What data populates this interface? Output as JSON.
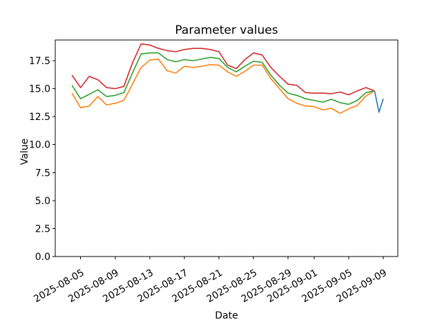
{
  "figure": {
    "title": "Parameter values",
    "x_axis_label": "Date",
    "y_axis_label": "Value"
  },
  "chart_data": {
    "type": "line",
    "title": "Parameter values",
    "xlabel": "Date",
    "ylabel": "Value",
    "grid": false,
    "legend": false,
    "ylim": [
      0,
      19.35
    ],
    "xlim_days_from_2025_08_05": [
      -2.93,
      36.68
    ],
    "y_ticks": [
      0,
      2.5,
      5,
      7.5,
      10,
      12.5,
      15,
      17.5
    ],
    "y_tick_labels": [
      "0.0",
      "2.5",
      "5.0",
      "7.5",
      "10.0",
      "12.5",
      "15.0",
      "17.5"
    ],
    "x_ticks": [
      "2025-08-05",
      "2025-08-09",
      "2025-08-13",
      "2025-08-17",
      "2025-08-21",
      "2025-08-25",
      "2025-08-29",
      "2025-09-01",
      "2025-09-05",
      "2025-09-09"
    ],
    "x_dates": [
      "2025-08-04",
      "2025-08-05",
      "2025-08-06",
      "2025-08-07",
      "2025-08-08",
      "2025-08-09",
      "2025-08-10",
      "2025-08-11",
      "2025-08-12",
      "2025-08-13",
      "2025-08-14",
      "2025-08-15",
      "2025-08-16",
      "2025-08-17",
      "2025-08-18",
      "2025-08-19",
      "2025-08-20",
      "2025-08-21",
      "2025-08-22",
      "2025-08-23",
      "2025-08-24",
      "2025-08-25",
      "2025-08-26",
      "2025-08-27",
      "2025-08-28",
      "2025-08-29",
      "2025-08-30",
      "2025-08-31",
      "2025-09-01",
      "2025-09-02",
      "2025-09-03",
      "2025-09-04",
      "2025-09-05",
      "2025-09-06",
      "2025-09-07",
      "2025-09-08"
    ],
    "series": [
      {
        "name": "red-series",
        "color": "#d62728",
        "values": [
          16.2,
          15.1,
          16.1,
          15.8,
          15.1,
          15.0,
          15.2,
          17.3,
          19.0,
          18.9,
          18.6,
          18.4,
          18.3,
          18.5,
          18.6,
          18.6,
          18.5,
          18.3,
          17.1,
          16.8,
          17.6,
          18.2,
          18.0,
          16.9,
          16.1,
          15.4,
          15.3,
          14.65,
          14.6,
          14.6,
          14.55,
          14.7,
          14.45,
          14.8,
          15.1,
          14.8
        ]
      },
      {
        "name": "green-series",
        "color": "#2ca02c",
        "values": [
          15.3,
          14.1,
          14.5,
          14.9,
          14.3,
          14.4,
          14.65,
          16.4,
          18.1,
          18.2,
          18.2,
          17.6,
          17.4,
          17.6,
          17.5,
          17.65,
          17.8,
          17.7,
          16.9,
          16.5,
          17.0,
          17.45,
          17.35,
          16.2,
          15.3,
          14.6,
          14.4,
          14.1,
          13.95,
          13.8,
          14.05,
          13.75,
          13.6,
          13.95,
          14.65,
          14.8
        ]
      },
      {
        "name": "orange-series",
        "color": "#ff7f0e",
        "values": [
          14.6,
          13.3,
          13.45,
          14.3,
          13.55,
          13.7,
          13.95,
          15.4,
          16.9,
          17.55,
          17.65,
          16.6,
          16.4,
          17.0,
          16.9,
          17.0,
          17.15,
          17.1,
          16.5,
          16.1,
          16.55,
          17.1,
          17.1,
          15.9,
          15.0,
          14.1,
          13.7,
          13.45,
          13.4,
          13.1,
          13.25,
          12.8,
          13.2,
          13.5,
          14.35,
          14.8
        ]
      },
      {
        "name": "blue-series",
        "color": "#1f77b4",
        "x_dates": [
          "2025-09-08 00:00",
          "2025-09-08 12:00",
          "2025-09-09 00:00"
        ],
        "values": [
          14.8,
          12.9,
          14.1
        ]
      }
    ]
  }
}
